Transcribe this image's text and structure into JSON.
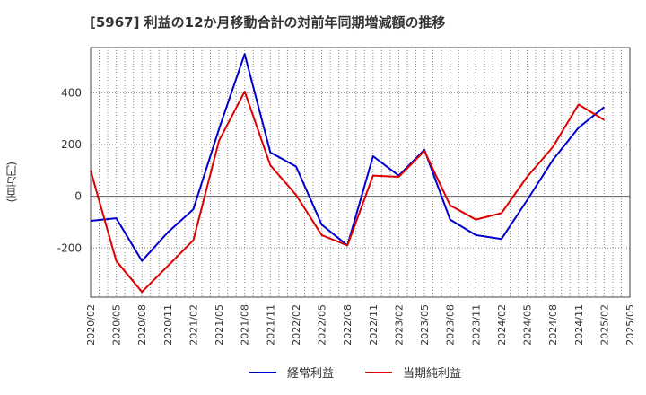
{
  "chart_data": {
    "type": "line",
    "title": "[5967]  利益の12か月移動合計の対前年同期増減額の推移",
    "ylabel": "(百万円)",
    "xlabel": "",
    "ylim": [
      -390,
      575
    ],
    "yticks": [
      -200,
      0,
      200,
      400
    ],
    "categories": [
      "2020/02",
      "2020/05",
      "2020/08",
      "2020/11",
      "2021/02",
      "2021/05",
      "2021/08",
      "2021/11",
      "2022/02",
      "2022/05",
      "2022/08",
      "2022/11",
      "2023/02",
      "2023/05",
      "2023/08",
      "2023/11",
      "2024/02",
      "2024/05",
      "2024/08",
      "2024/11",
      "2025/02",
      "2025/05"
    ],
    "series": [
      {
        "name": "経常利益",
        "color": "#0000cc",
        "values": [
          -95,
          -85,
          -250,
          -140,
          -50,
          260,
          550,
          170,
          115,
          -110,
          -190,
          155,
          80,
          180,
          -90,
          -150,
          -165,
          -15,
          140,
          265,
          345,
          null
        ]
      },
      {
        "name": "当期純利益",
        "color": "#dd0000",
        "values": [
          100,
          -250,
          -370,
          -270,
          -170,
          215,
          405,
          120,
          5,
          -150,
          -190,
          80,
          75,
          175,
          -35,
          -90,
          -65,
          75,
          190,
          355,
          295,
          null
        ]
      }
    ],
    "legend_position": "bottom",
    "grid": true
  }
}
